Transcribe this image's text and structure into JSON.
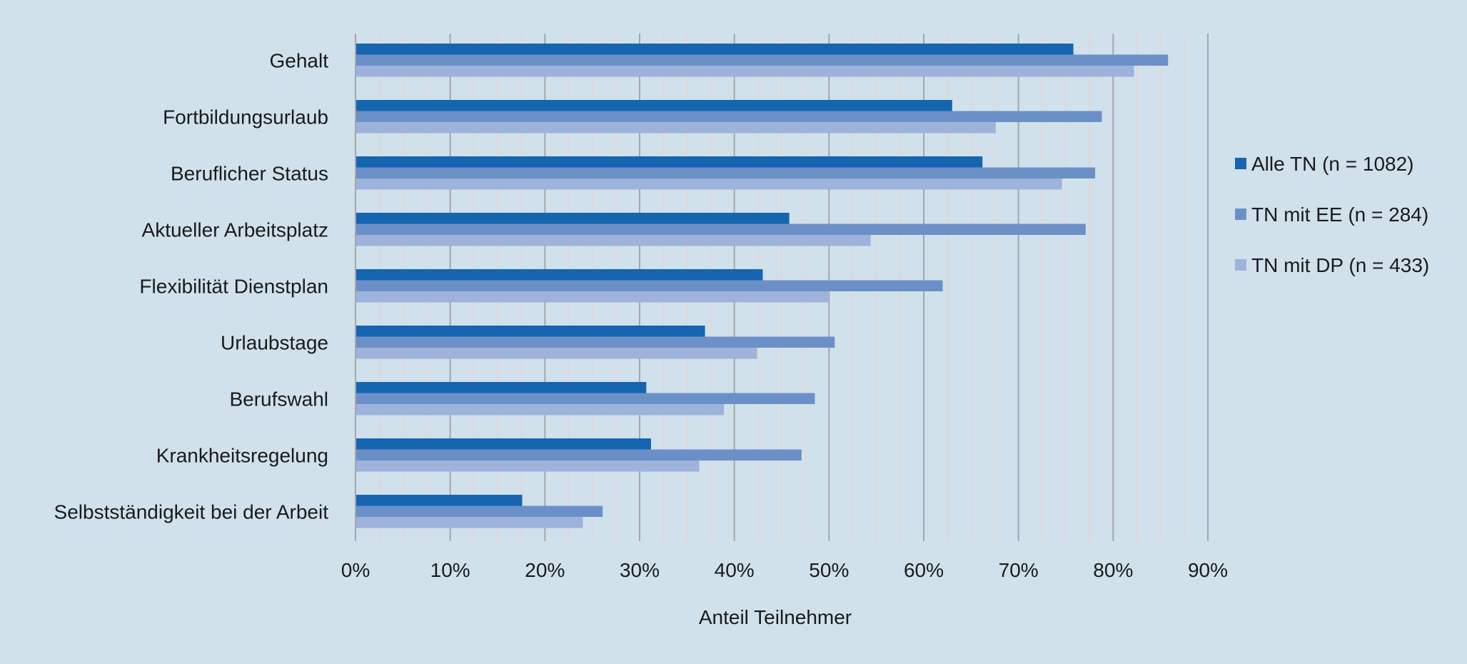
{
  "chart_data": {
    "type": "bar",
    "orientation": "horizontal",
    "categories": [
      "Gehalt",
      "Fortbildungsurlaub",
      "Beruflicher Status",
      "Aktueller Arbeitsplatz",
      "Flexibilität Dienstplan",
      "Urlaubstage",
      "Berufswahl",
      "Krankheitsregelung",
      "Selbstständigkeit bei der Arbeit"
    ],
    "series": [
      {
        "name": "Alle TN (n = 1082)",
        "color": "#1565b0",
        "values": [
          75.8,
          63.0,
          66.2,
          45.8,
          43.0,
          36.9,
          30.7,
          31.2,
          17.6
        ]
      },
      {
        "name": "TN mit EE (n = 284)",
        "color": "#6b90c8",
        "values": [
          85.8,
          78.8,
          78.1,
          77.1,
          62.0,
          50.6,
          48.5,
          47.1,
          26.1
        ]
      },
      {
        "name": "TN mit DP (n = 433)",
        "color": "#9db3dc",
        "values": [
          82.2,
          67.6,
          74.6,
          54.4,
          49.9,
          42.4,
          38.9,
          36.3,
          24.0
        ]
      }
    ],
    "xlim": [
      0,
      90
    ],
    "x_ticks": [
      "0%",
      "10%",
      "20%",
      "30%",
      "40%",
      "50%",
      "60%",
      "70%",
      "80%",
      "90%"
    ],
    "xlabel": "Anteil Teilnehmer",
    "ylabel": "",
    "grid": {
      "major": true,
      "minor": true
    },
    "legend_position": "right"
  }
}
